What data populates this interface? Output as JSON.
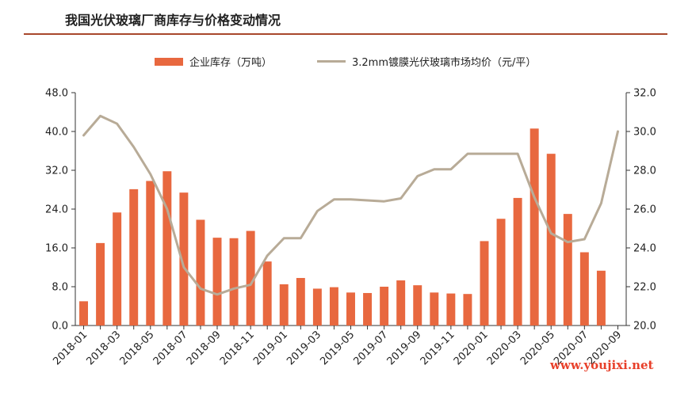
{
  "header": {
    "title": "我国光伏玻璃厂商库存与价格变动情况"
  },
  "watermark": "www.youjixi.net",
  "colors": {
    "bar": "#e8683f",
    "line": "#b8ab97",
    "rule": "#a8472c",
    "watermark": "#e8402a"
  },
  "chart_data": {
    "type": "bar",
    "title": "我国光伏玻璃厂商库存与价格变动情况",
    "categories": [
      "2018-01",
      "2018-02",
      "2018-03",
      "2018-04",
      "2018-05",
      "2018-06",
      "2018-07",
      "2018-08",
      "2018-09",
      "2018-10",
      "2018-11",
      "2018-12",
      "2019-01",
      "2019-02",
      "2019-03",
      "2019-04",
      "2019-05",
      "2019-06",
      "2019-07",
      "2019-08",
      "2019-09",
      "2019-10",
      "2019-11",
      "2019-12",
      "2020-01",
      "2020-02",
      "2020-03",
      "2020-04",
      "2020-05",
      "2020-06",
      "2020-07",
      "2020-08",
      "2020-09"
    ],
    "tick_labels": [
      "2018-01",
      "2018-03",
      "2018-05",
      "2018-07",
      "2018-09",
      "2018-11",
      "2019-01",
      "2019-03",
      "2019-05",
      "2019-07",
      "2019-09",
      "2019-11",
      "2020-01",
      "2020-03",
      "2020-05",
      "2020-07",
      "2020-09"
    ],
    "series": [
      {
        "name": "企业库存（万吨）",
        "type": "bar",
        "axis": "left",
        "values": [
          5.0,
          17.0,
          23.3,
          28.1,
          29.8,
          31.8,
          27.4,
          21.8,
          18.1,
          18.0,
          19.5,
          13.2,
          8.5,
          9.8,
          7.6,
          7.9,
          6.8,
          6.7,
          8.0,
          9.3,
          8.3,
          6.8,
          6.6,
          6.5,
          17.4,
          22.0,
          26.3,
          40.6,
          35.4,
          23.0,
          15.1,
          11.3,
          null
        ]
      },
      {
        "name": "3.2mm镀膜光伏玻璃市场均价（元/平）",
        "type": "line",
        "axis": "right",
        "values": [
          29.8,
          30.8,
          30.4,
          29.2,
          27.8,
          26.0,
          23.0,
          21.9,
          21.6,
          21.9,
          22.1,
          23.6,
          24.5,
          24.5,
          25.9,
          26.5,
          26.5,
          26.45,
          26.4,
          26.55,
          27.7,
          28.05,
          28.05,
          28.85,
          28.85,
          28.85,
          28.85,
          26.6,
          24.75,
          24.3,
          24.45,
          26.3,
          30.0
        ]
      }
    ],
    "y_left": {
      "ylim": [
        0,
        48
      ],
      "ticks": [
        "0.0",
        "8.0",
        "16.0",
        "24.0",
        "32.0",
        "40.0",
        "48.0"
      ]
    },
    "y_right": {
      "ylim": [
        20,
        32
      ],
      "ticks": [
        "20.0",
        "22.0",
        "24.0",
        "26.0",
        "28.0",
        "30.0",
        "32.0"
      ]
    },
    "grid": false,
    "legend": "top"
  }
}
